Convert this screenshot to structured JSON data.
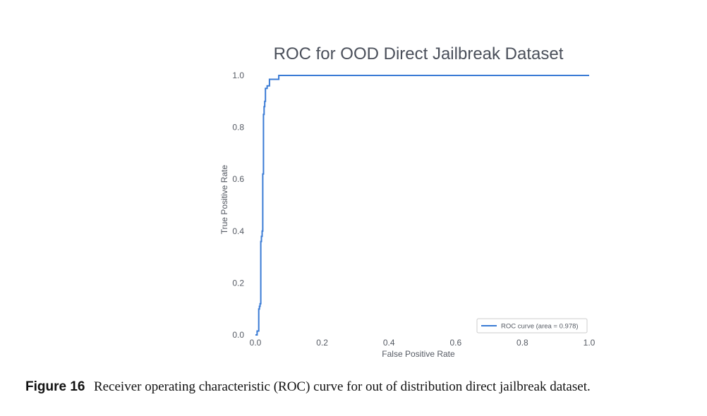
{
  "chart_data": {
    "type": "line",
    "title": "ROC for OOD Direct Jailbreak Dataset",
    "xlabel": "False Positive Rate",
    "ylabel": "True Positive Rate",
    "xlim": [
      0.0,
      1.0
    ],
    "ylim": [
      0.0,
      1.0
    ],
    "xticks": [
      "0.0",
      "0.2",
      "0.4",
      "0.6",
      "0.8",
      "1.0"
    ],
    "yticks": [
      "0.0",
      "0.2",
      "0.4",
      "0.6",
      "0.8",
      "1.0"
    ],
    "grid": false,
    "legend_position": "bottom-right",
    "color": "#3a7bd5",
    "series": [
      {
        "name": "ROC curve (area = 0.978)",
        "x": [
          0.0,
          0.0,
          0.005,
          0.005,
          0.01,
          0.01,
          0.012,
          0.012,
          0.014,
          0.014,
          0.016,
          0.016,
          0.018,
          0.018,
          0.02,
          0.02,
          0.022,
          0.022,
          0.024,
          0.024,
          0.026,
          0.026,
          0.028,
          0.028,
          0.03,
          0.03,
          0.035,
          0.035,
          0.042,
          0.042,
          0.07,
          0.07,
          1.0
        ],
        "y": [
          0.0,
          0.0,
          0.0,
          0.015,
          0.015,
          0.1,
          0.1,
          0.11,
          0.11,
          0.12,
          0.12,
          0.36,
          0.36,
          0.38,
          0.38,
          0.4,
          0.4,
          0.62,
          0.62,
          0.85,
          0.85,
          0.88,
          0.88,
          0.9,
          0.9,
          0.95,
          0.95,
          0.96,
          0.96,
          0.985,
          0.985,
          1.0,
          1.0
        ]
      }
    ]
  },
  "caption": {
    "label": "Figure 16",
    "text": "Receiver operating characteristic (ROC) curve for out of distribution direct jailbreak dataset."
  }
}
